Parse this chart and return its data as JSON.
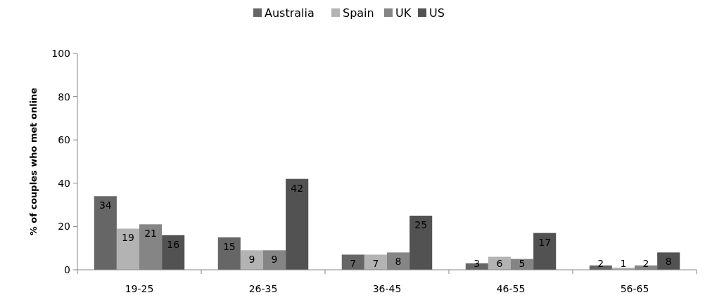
{
  "chart_data": {
    "type": "bar",
    "ylabel": "% of couples who met online",
    "categories": [
      "19-25",
      "26-35",
      "36-45",
      "46-55",
      "56-65"
    ],
    "series": [
      {
        "name": "Australia",
        "color": "#666666",
        "values": [
          34,
          15,
          7,
          3,
          2
        ]
      },
      {
        "name": "Spain",
        "color": "#b3b3b3",
        "values": [
          19,
          9,
          7,
          6,
          1
        ]
      },
      {
        "name": "UK",
        "color": "#858585",
        "values": [
          21,
          9,
          8,
          5,
          2
        ]
      },
      {
        "name": "US",
        "color": "#525252",
        "values": [
          16,
          42,
          25,
          17,
          8
        ]
      }
    ],
    "ylim": [
      0,
      100
    ],
    "yticks": [
      0,
      20,
      40,
      60,
      80,
      100
    ],
    "data_labels": true,
    "legend": "top",
    "grid": false
  }
}
